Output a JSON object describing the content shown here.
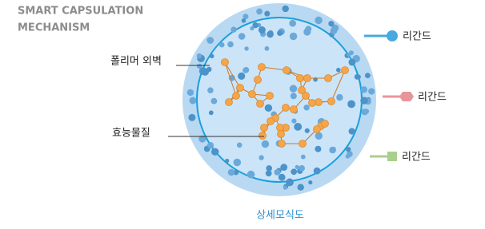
{
  "header": {
    "title": [
      "SMART CAPSULATION",
      "MECHANISM"
    ]
  },
  "labels": {
    "wall": "폴리머 외벽",
    "payload": "효능물질"
  },
  "ligands": [
    "리간드",
    "리간드",
    "리간드"
  ],
  "caption": "상세모식도"
}
